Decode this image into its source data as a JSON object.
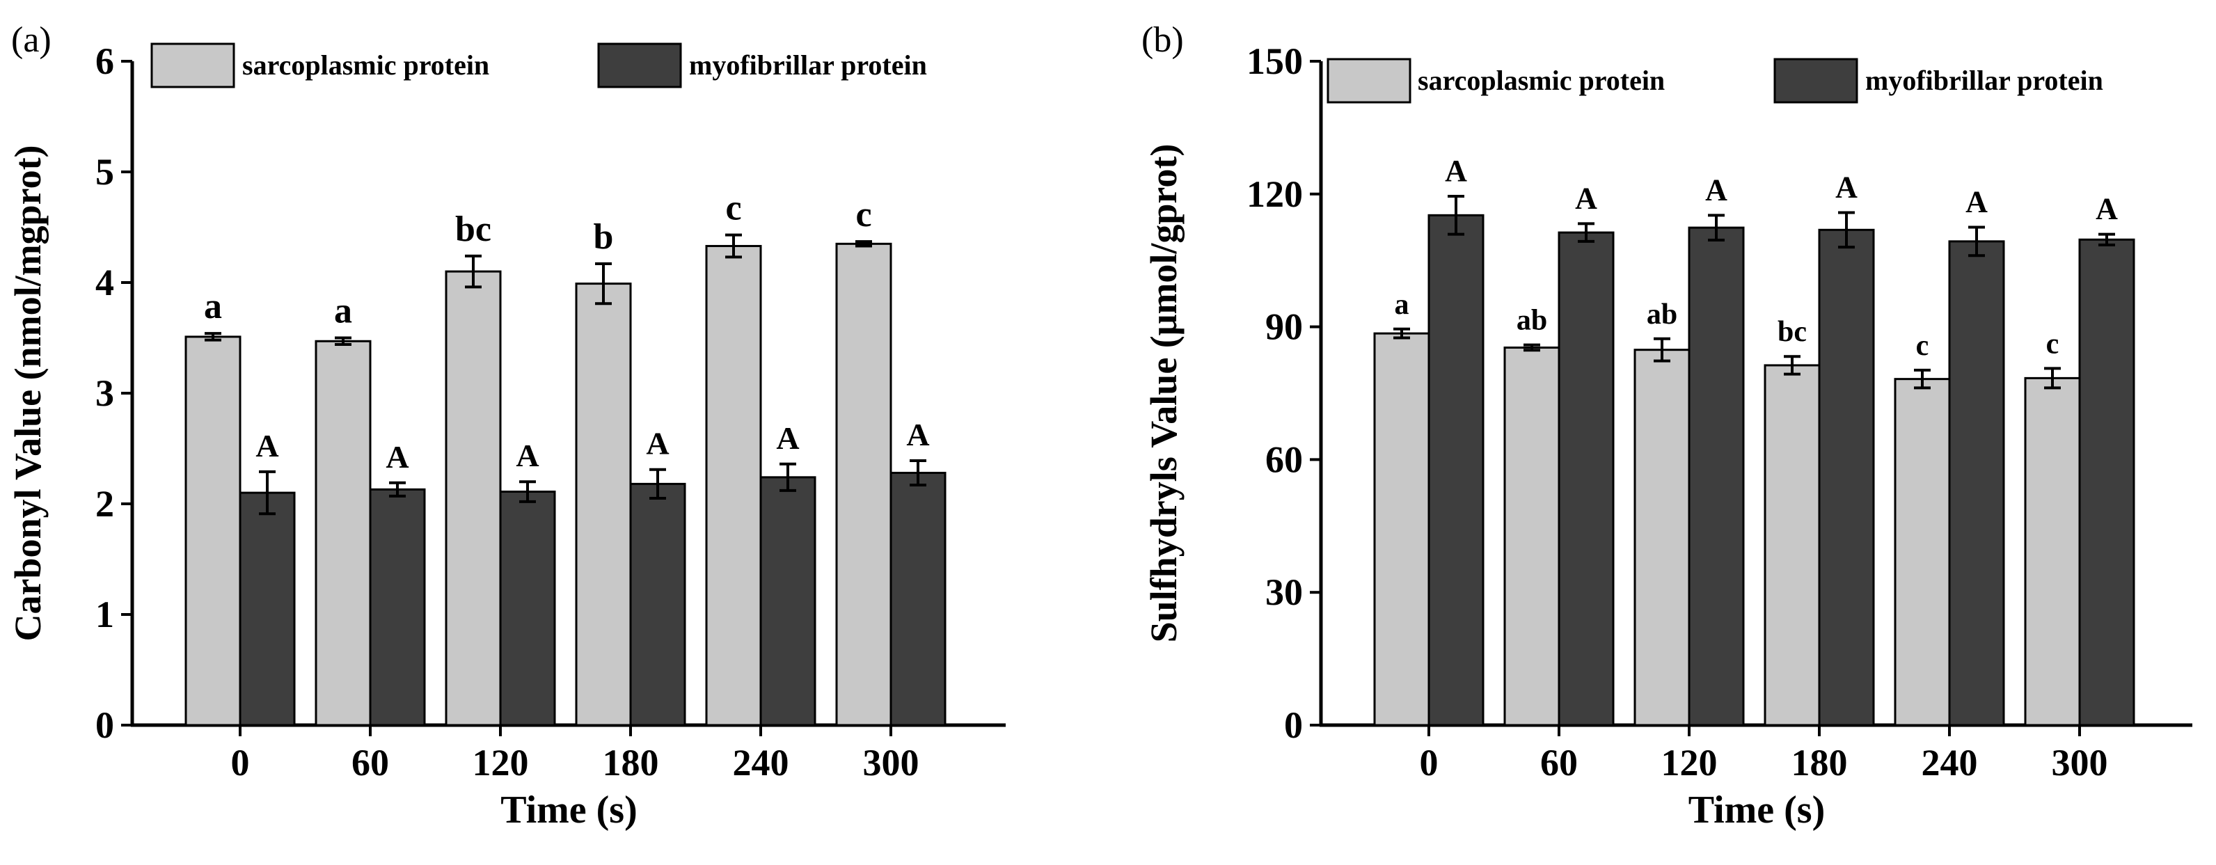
{
  "colors": {
    "sarcoplasmic": "#c8c8c8",
    "myofibrillar": "#3e3e3e",
    "axis": "#000000",
    "background": "#ffffff"
  },
  "chart_data": [
    {
      "panel_label": "(a)",
      "type": "bar",
      "title": "",
      "xlabel": "Time (s)",
      "ylabel": "Carbonyl Value (nmol/mgprot)",
      "ylim": [
        0,
        6
      ],
      "yticks": [
        0,
        1,
        2,
        3,
        4,
        5,
        6
      ],
      "grid": false,
      "legend_position": "top",
      "categories": [
        "0",
        "60",
        "120",
        "180",
        "240",
        "300"
      ],
      "series": [
        {
          "name": "sarcoplasmic protein",
          "color": "#c8c8c8",
          "values": [
            3.51,
            3.47,
            4.1,
            3.99,
            4.33,
            4.35
          ],
          "errors": [
            0.03,
            0.03,
            0.14,
            0.18,
            0.1,
            0.02
          ],
          "labels": [
            "a",
            "a",
            "bc",
            "b",
            "c",
            "c"
          ]
        },
        {
          "name": "myofibrillar protein",
          "color": "#3e3e3e",
          "values": [
            2.1,
            2.13,
            2.11,
            2.18,
            2.24,
            2.28
          ],
          "errors": [
            0.19,
            0.06,
            0.09,
            0.13,
            0.12,
            0.11
          ],
          "labels": [
            "A",
            "A",
            "A",
            "A",
            "A",
            "A"
          ]
        }
      ]
    },
    {
      "panel_label": "(b)",
      "type": "bar",
      "title": "",
      "xlabel": "Time (s)",
      "ylabel": "Sulfhydryls Value (μmol/gprot)",
      "ylim": [
        0,
        150
      ],
      "yticks": [
        0,
        30,
        60,
        90,
        120,
        150
      ],
      "grid": false,
      "legend_position": "top",
      "categories": [
        "0",
        "60",
        "120",
        "180",
        "240",
        "300"
      ],
      "series": [
        {
          "name": "sarcoplasmic protein",
          "color": "#c8c8c8",
          "values": [
            88.5,
            85.3,
            84.8,
            81.3,
            78.2,
            78.4
          ],
          "errors": [
            1.0,
            0.6,
            2.5,
            2.0,
            2.0,
            2.2
          ],
          "labels": [
            "a",
            "ab",
            "ab",
            "bc",
            "c",
            "c"
          ]
        },
        {
          "name": "myofibrillar protein",
          "color": "#3e3e3e",
          "values": [
            115.2,
            111.3,
            112.4,
            111.9,
            109.3,
            109.7
          ],
          "errors": [
            4.3,
            2.0,
            2.8,
            3.9,
            3.2,
            1.2
          ],
          "labels": [
            "A",
            "A",
            "A",
            "A",
            "A",
            "A"
          ]
        }
      ]
    }
  ]
}
